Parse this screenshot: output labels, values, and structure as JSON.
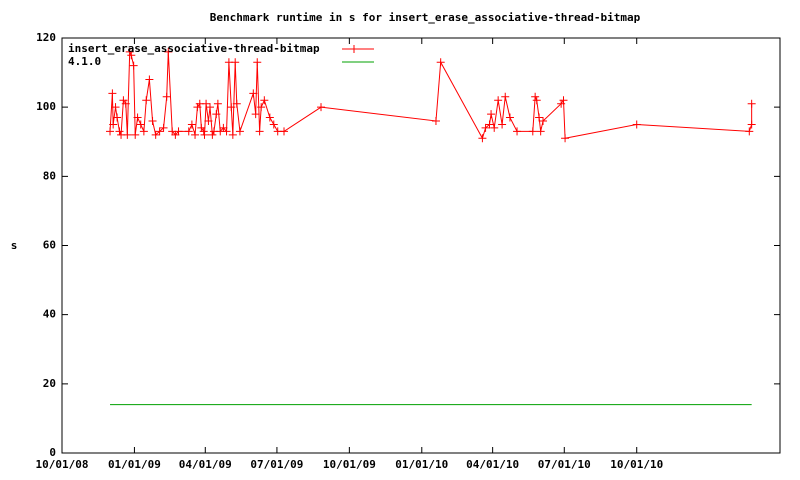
{
  "chart_data": {
    "type": "line",
    "title": "Benchmark runtime in s for insert_erase_associative-thread-bitmap",
    "y_label": "s",
    "xlim": [
      "2008-10-01",
      "2011-04-01"
    ],
    "xticks": [
      {
        "value": "2008-10-01",
        "label": "10/01/08"
      },
      {
        "value": "2009-01-01",
        "label": "01/01/09"
      },
      {
        "value": "2009-04-01",
        "label": "04/01/09"
      },
      {
        "value": "2009-07-01",
        "label": "07/01/09"
      },
      {
        "value": "2009-10-01",
        "label": "10/01/09"
      },
      {
        "value": "2010-01-01",
        "label": "01/01/10"
      },
      {
        "value": "2010-04-01",
        "label": "04/01/10"
      },
      {
        "value": "2010-07-01",
        "label": "07/01/10"
      },
      {
        "value": "2010-10-01",
        "label": "10/01/10"
      }
    ],
    "ylim": [
      0,
      120
    ],
    "yticks": [
      0,
      20,
      40,
      60,
      80,
      100,
      120
    ],
    "legend": "top-left",
    "series": [
      {
        "name": "insert_erase_associative-thread-bitmap",
        "color": "#ff0000",
        "markers": true,
        "x": [
          "2008-12-01",
          "2008-12-04",
          "2008-12-05",
          "2008-12-08",
          "2008-12-10",
          "2008-12-13",
          "2008-12-15",
          "2008-12-18",
          "2008-12-21",
          "2008-12-23",
          "2008-12-26",
          "2008-12-28",
          "2008-12-31",
          "2009-01-02",
          "2009-01-05",
          "2009-01-09",
          "2009-01-13",
          "2009-01-16",
          "2009-01-20",
          "2009-01-24",
          "2009-01-28",
          "2009-02-02",
          "2009-02-07",
          "2009-02-11",
          "2009-02-13",
          "2009-02-18",
          "2009-02-22",
          "2009-02-26",
          "2009-03-11",
          "2009-03-15",
          "2009-03-19",
          "2009-03-22",
          "2009-03-25",
          "2009-03-27",
          "2009-03-30",
          "2009-03-31",
          "2009-04-02",
          "2009-04-05",
          "2009-04-07",
          "2009-04-10",
          "2009-04-12",
          "2009-04-15",
          "2009-04-17",
          "2009-04-20",
          "2009-04-24",
          "2009-04-28",
          "2009-05-01",
          "2009-05-04",
          "2009-05-06",
          "2009-05-09",
          "2009-05-11",
          "2009-05-15",
          "2009-06-01",
          "2009-06-04",
          "2009-06-06",
          "2009-06-09",
          "2009-06-11",
          "2009-06-15",
          "2009-06-22",
          "2009-06-27",
          "2009-07-02",
          "2009-07-10",
          "2009-08-26",
          "2010-01-19",
          "2010-01-25",
          "2010-03-19",
          "2010-03-23",
          "2010-03-28",
          "2010-03-30",
          "2010-04-03",
          "2010-04-08",
          "2010-04-13",
          "2010-04-17",
          "2010-04-23",
          "2010-05-02",
          "2010-05-22",
          "2010-05-25",
          "2010-05-27",
          "2010-05-30",
          "2010-06-01",
          "2010-06-04",
          "2010-06-27",
          "2010-06-30",
          "2010-07-02",
          "2010-10-01",
          "2011-02-21",
          "2011-02-24",
          "2011-02-24"
        ],
        "values": [
          93,
          104,
          95,
          100,
          97,
          93,
          92,
          102,
          101,
          92,
          116,
          115,
          112,
          92,
          97,
          95,
          93,
          102,
          108,
          96,
          92,
          93,
          94,
          103,
          116,
          93,
          92,
          93,
          93,
          95,
          92,
          100,
          101,
          94,
          93,
          92,
          101,
          96,
          100,
          92,
          93,
          98,
          101,
          93,
          94,
          93,
          113,
          100,
          92,
          113,
          101,
          93,
          104,
          98,
          113,
          93,
          100,
          102,
          97,
          95,
          93,
          93,
          100,
          96,
          113,
          91,
          94,
          95,
          98,
          94,
          102,
          95,
          103,
          97,
          93,
          93,
          103,
          102,
          97,
          93,
          96,
          101,
          102,
          91,
          95,
          93,
          95,
          101
        ]
      },
      {
        "name": "4.1.0",
        "color": "#00a000",
        "markers": false,
        "x": [
          "2008-12-01",
          "2011-02-24"
        ],
        "values": [
          14,
          14
        ]
      }
    ]
  }
}
